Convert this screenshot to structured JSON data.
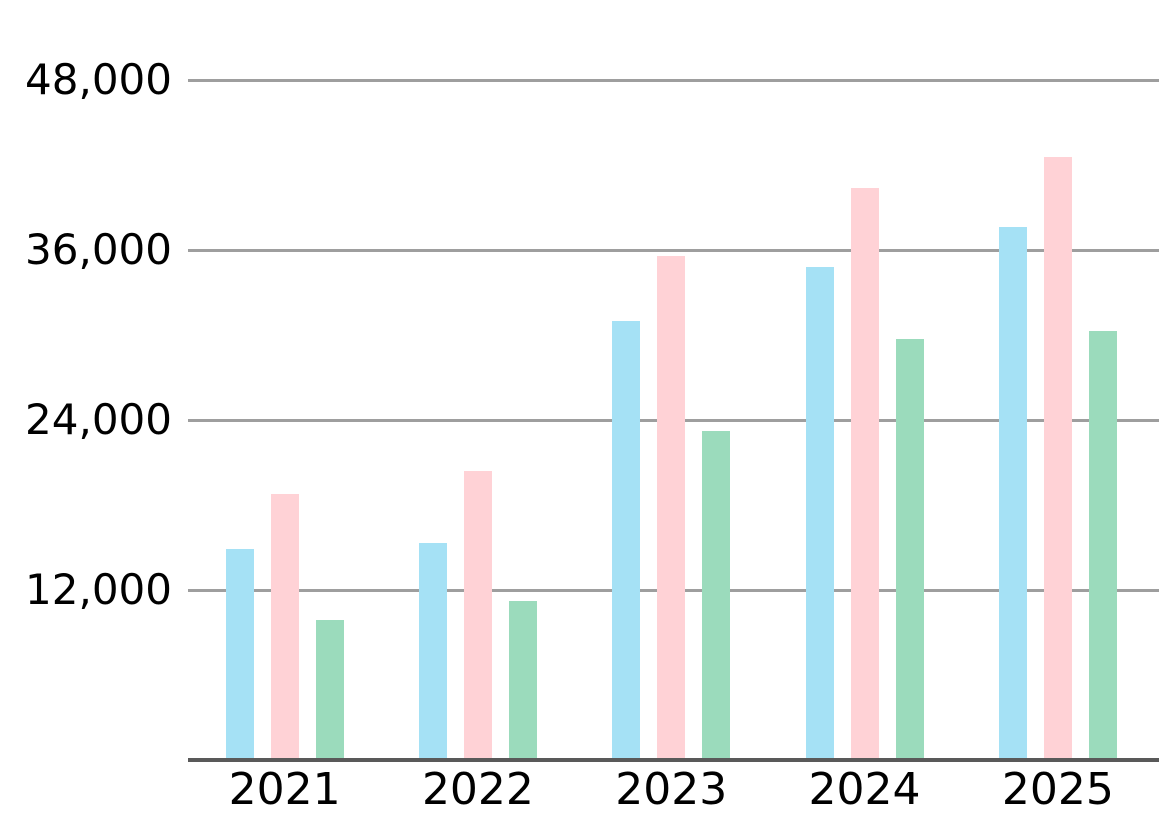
{
  "chart_data": {
    "type": "bar",
    "title": "",
    "categories": [
      "2021",
      "2022",
      "2023",
      "2024",
      "2025"
    ],
    "series": [
      {
        "name": "blue",
        "color": "#A5E1F5",
        "values": [
          14900,
          15300,
          31000,
          34800,
          37600
        ]
      },
      {
        "name": "pink",
        "color": "#FFD2D6",
        "values": [
          18800,
          20400,
          35600,
          40400,
          42600
        ]
      },
      {
        "name": "green",
        "color": "#9BDBBC",
        "values": [
          9900,
          11200,
          23200,
          29700,
          30300
        ]
      }
    ],
    "xlabel": "",
    "ylabel": "",
    "ylim": [
      0,
      48000
    ],
    "yticks": [
      12000,
      24000,
      36000,
      48000
    ],
    "ytick_labels": [
      "12,000",
      "24,000",
      "36,000",
      "48,000"
    ],
    "grid": true,
    "legend": "none",
    "colors": {
      "gridline": "#9e9e9e",
      "axis_line": "#595959",
      "text": "#000000",
      "background": "#ffffff"
    }
  }
}
